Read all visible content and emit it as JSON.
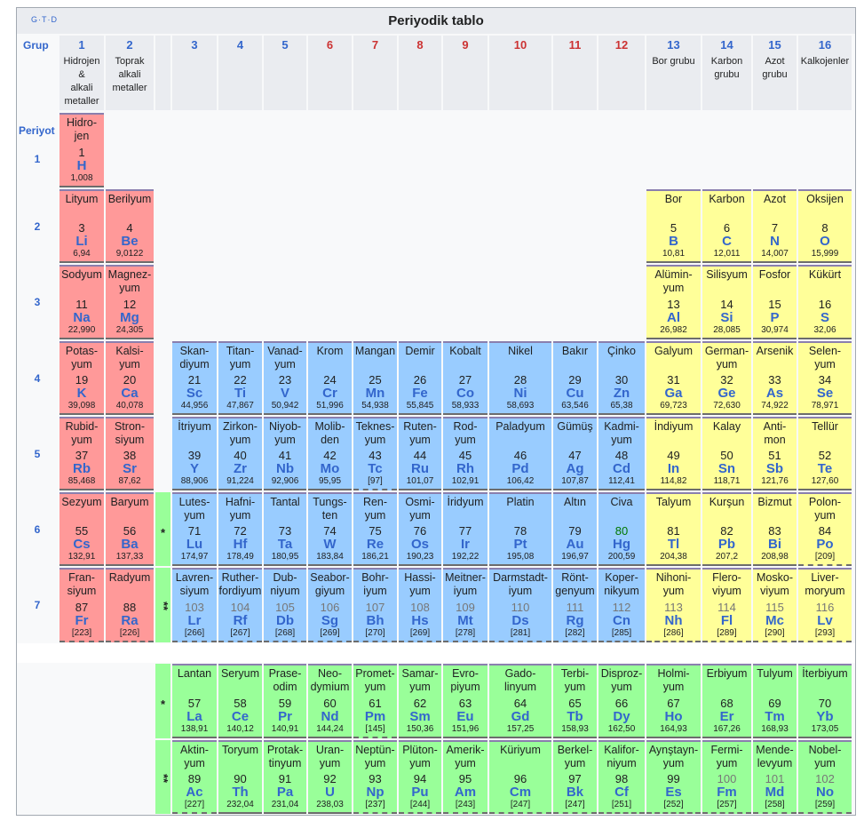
{
  "header": {
    "title": "Periyodik tablo",
    "nav": "G·T·D"
  },
  "labels": {
    "group": "Grup",
    "period": "Periyot"
  },
  "colors": {
    "red": "#ff9999",
    "blue": "#99ccff",
    "yellow": "#ffff99",
    "green": "#99ff99",
    "symbol": "#3366cc",
    "group_red": "#cc3333"
  },
  "groups": [
    {
      "col": 0,
      "num": "1",
      "name": "Hidrojen\n&\nalkali\nmetaller",
      "numcolor": "blue"
    },
    {
      "col": 1,
      "num": "2",
      "name": "Toprak\nalkali\nmetaller",
      "numcolor": "blue"
    },
    {
      "col": 3,
      "num": "3",
      "name": "",
      "numcolor": "blue"
    },
    {
      "col": 4,
      "num": "4",
      "name": "",
      "numcolor": "blue"
    },
    {
      "col": 5,
      "num": "5",
      "name": "",
      "numcolor": "blue"
    },
    {
      "col": 6,
      "num": "6",
      "name": "",
      "numcolor": "red"
    },
    {
      "col": 7,
      "num": "7",
      "name": "",
      "numcolor": "red"
    },
    {
      "col": 8,
      "num": "8",
      "name": "",
      "numcolor": "red"
    },
    {
      "col": 9,
      "num": "9",
      "name": "",
      "numcolor": "red"
    },
    {
      "col": 10,
      "num": "10",
      "name": "",
      "numcolor": "red"
    },
    {
      "col": 11,
      "num": "11",
      "name": "",
      "numcolor": "red"
    },
    {
      "col": 12,
      "num": "12",
      "name": "",
      "numcolor": "red"
    },
    {
      "col": 13,
      "num": "13",
      "name": "Bor grubu",
      "numcolor": "blue"
    },
    {
      "col": 14,
      "num": "14",
      "name": "Karbon\ngrubu",
      "numcolor": "blue"
    },
    {
      "col": 15,
      "num": "15",
      "name": "Azot\ngrubu",
      "numcolor": "blue"
    },
    {
      "col": 16,
      "num": "16",
      "name": "Kalkojenler",
      "numcolor": "blue"
    }
  ],
  "periods": [
    "1",
    "2",
    "3",
    "4",
    "5",
    "6",
    "7"
  ],
  "series_markers": [
    "*",
    "**",
    "*",
    "**"
  ],
  "elements": [
    {
      "col": 0,
      "row": 0,
      "name": "Hidro-\njen",
      "z": "1",
      "sym": "H",
      "mass": "1,008",
      "cat": "red"
    },
    {
      "col": 0,
      "row": 1,
      "name": "Lityum",
      "z": "3",
      "sym": "Li",
      "mass": "6,94",
      "cat": "red"
    },
    {
      "col": 1,
      "row": 1,
      "name": "Berilyum",
      "z": "4",
      "sym": "Be",
      "mass": "9,0122",
      "cat": "red"
    },
    {
      "col": 13,
      "row": 1,
      "name": "Bor",
      "z": "5",
      "sym": "B",
      "mass": "10,81",
      "cat": "yellow"
    },
    {
      "col": 14,
      "row": 1,
      "name": "Karbon",
      "z": "6",
      "sym": "C",
      "mass": "12,011",
      "cat": "yellow"
    },
    {
      "col": 15,
      "row": 1,
      "name": "Azot",
      "z": "7",
      "sym": "N",
      "mass": "14,007",
      "cat": "yellow"
    },
    {
      "col": 16,
      "row": 1,
      "name": "Oksijen",
      "z": "8",
      "sym": "O",
      "mass": "15,999",
      "cat": "yellow"
    },
    {
      "col": 0,
      "row": 2,
      "name": "Sodyum",
      "z": "11",
      "sym": "Na",
      "mass": "22,990",
      "cat": "red"
    },
    {
      "col": 1,
      "row": 2,
      "name": "Magnez-\nyum",
      "z": "12",
      "sym": "Mg",
      "mass": "24,305",
      "cat": "red"
    },
    {
      "col": 13,
      "row": 2,
      "name": "Alümin-\nyum",
      "z": "13",
      "sym": "Al",
      "mass": "26,982",
      "cat": "yellow"
    },
    {
      "col": 14,
      "row": 2,
      "name": "Silisyum",
      "z": "14",
      "sym": "Si",
      "mass": "28,085",
      "cat": "yellow"
    },
    {
      "col": 15,
      "row": 2,
      "name": "Fosfor",
      "z": "15",
      "sym": "P",
      "mass": "30,974",
      "cat": "yellow"
    },
    {
      "col": 16,
      "row": 2,
      "name": "Kükürt",
      "z": "16",
      "sym": "S",
      "mass": "32,06",
      "cat": "yellow"
    },
    {
      "col": 0,
      "row": 3,
      "name": "Potas-\nyum",
      "z": "19",
      "sym": "K",
      "mass": "39,098",
      "cat": "red"
    },
    {
      "col": 1,
      "row": 3,
      "name": "Kalsi-\nyum",
      "z": "20",
      "sym": "Ca",
      "mass": "40,078",
      "cat": "red"
    },
    {
      "col": 3,
      "row": 3,
      "name": "Skan-\ndiyum",
      "z": "21",
      "sym": "Sc",
      "mass": "44,956",
      "cat": "blue"
    },
    {
      "col": 4,
      "row": 3,
      "name": "Titan-\nyum",
      "z": "22",
      "sym": "Ti",
      "mass": "47,867",
      "cat": "blue"
    },
    {
      "col": 5,
      "row": 3,
      "name": "Vanad-\nyum",
      "z": "23",
      "sym": "V",
      "mass": "50,942",
      "cat": "blue"
    },
    {
      "col": 6,
      "row": 3,
      "name": "Krom",
      "z": "24",
      "sym": "Cr",
      "mass": "51,996",
      "cat": "blue"
    },
    {
      "col": 7,
      "row": 3,
      "name": "Mangan",
      "z": "25",
      "sym": "Mn",
      "mass": "54,938",
      "cat": "blue"
    },
    {
      "col": 8,
      "row": 3,
      "name": "Demir",
      "z": "26",
      "sym": "Fe",
      "mass": "55,845",
      "cat": "blue"
    },
    {
      "col": 9,
      "row": 3,
      "name": "Kobalt",
      "z": "27",
      "sym": "Co",
      "mass": "58,933",
      "cat": "blue"
    },
    {
      "col": 10,
      "row": 3,
      "name": "Nikel",
      "z": "28",
      "sym": "Ni",
      "mass": "58,693",
      "cat": "blue"
    },
    {
      "col": 11,
      "row": 3,
      "name": "Bakır",
      "z": "29",
      "sym": "Cu",
      "mass": "63,546",
      "cat": "blue"
    },
    {
      "col": 12,
      "row": 3,
      "name": "Çinko",
      "z": "30",
      "sym": "Zn",
      "mass": "65,38",
      "cat": "blue"
    },
    {
      "col": 13,
      "row": 3,
      "name": "Galyum",
      "z": "31",
      "sym": "Ga",
      "mass": "69,723",
      "cat": "yellow"
    },
    {
      "col": 14,
      "row": 3,
      "name": "German-\nyum",
      "z": "32",
      "sym": "Ge",
      "mass": "72,630",
      "cat": "yellow"
    },
    {
      "col": 15,
      "row": 3,
      "name": "Arsenik",
      "z": "33",
      "sym": "As",
      "mass": "74,922",
      "cat": "yellow"
    },
    {
      "col": 16,
      "row": 3,
      "name": "Selen-\nyum",
      "z": "34",
      "sym": "Se",
      "mass": "78,971",
      "cat": "yellow"
    },
    {
      "col": 0,
      "row": 4,
      "name": "Rubid-\nyum",
      "z": "37",
      "sym": "Rb",
      "mass": "85,468",
      "cat": "red"
    },
    {
      "col": 1,
      "row": 4,
      "name": "Stron-\nsiyum",
      "z": "38",
      "sym": "Sr",
      "mass": "87,62",
      "cat": "red"
    },
    {
      "col": 3,
      "row": 4,
      "name": "İtriyum",
      "z": "39",
      "sym": "Y",
      "mass": "88,906",
      "cat": "blue"
    },
    {
      "col": 4,
      "row": 4,
      "name": "Zirkon-\nyum",
      "z": "40",
      "sym": "Zr",
      "mass": "91,224",
      "cat": "blue"
    },
    {
      "col": 5,
      "row": 4,
      "name": "Niyob-\nyum",
      "z": "41",
      "sym": "Nb",
      "mass": "92,906",
      "cat": "blue"
    },
    {
      "col": 6,
      "row": 4,
      "name": "Molib-\nden",
      "z": "42",
      "sym": "Mo",
      "mass": "95,95",
      "cat": "blue"
    },
    {
      "col": 7,
      "row": 4,
      "name": "Teknes-\nyum",
      "z": "43",
      "sym": "Tc",
      "mass": "[97]",
      "cat": "blue",
      "dashed": true
    },
    {
      "col": 8,
      "row": 4,
      "name": "Ruten-\nyum",
      "z": "44",
      "sym": "Ru",
      "mass": "101,07",
      "cat": "blue"
    },
    {
      "col": 9,
      "row": 4,
      "name": "Rod-\nyum",
      "z": "45",
      "sym": "Rh",
      "mass": "102,91",
      "cat": "blue"
    },
    {
      "col": 10,
      "row": 4,
      "name": "Paladyum",
      "z": "46",
      "sym": "Pd",
      "mass": "106,42",
      "cat": "blue"
    },
    {
      "col": 11,
      "row": 4,
      "name": "Gümüş",
      "z": "47",
      "sym": "Ag",
      "mass": "107,87",
      "cat": "blue"
    },
    {
      "col": 12,
      "row": 4,
      "name": "Kadmi-\nyum",
      "z": "48",
      "sym": "Cd",
      "mass": "112,41",
      "cat": "blue"
    },
    {
      "col": 13,
      "row": 4,
      "name": "İndiyum",
      "z": "49",
      "sym": "In",
      "mass": "114,82",
      "cat": "yellow"
    },
    {
      "col": 14,
      "row": 4,
      "name": "Kalay",
      "z": "50",
      "sym": "Sn",
      "mass": "118,71",
      "cat": "yellow"
    },
    {
      "col": 15,
      "row": 4,
      "name": "Anti-\nmon",
      "z": "51",
      "sym": "Sb",
      "mass": "121,76",
      "cat": "yellow"
    },
    {
      "col": 16,
      "row": 4,
      "name": "Tellür",
      "z": "52",
      "sym": "Te",
      "mass": "127,60",
      "cat": "yellow"
    },
    {
      "col": 0,
      "row": 5,
      "name": "Sezyum",
      "z": "55",
      "sym": "Cs",
      "mass": "132,91",
      "cat": "red"
    },
    {
      "col": 1,
      "row": 5,
      "name": "Baryum",
      "z": "56",
      "sym": "Ba",
      "mass": "137,33",
      "cat": "red"
    },
    {
      "col": 3,
      "row": 5,
      "name": "Lutes-\nyum",
      "z": "71",
      "sym": "Lu",
      "mass": "174,97",
      "cat": "blue"
    },
    {
      "col": 4,
      "row": 5,
      "name": "Hafni-\nyum",
      "z": "72",
      "sym": "Hf",
      "mass": "178,49",
      "cat": "blue"
    },
    {
      "col": 5,
      "row": 5,
      "name": "Tantal",
      "z": "73",
      "sym": "Ta",
      "mass": "180,95",
      "cat": "blue"
    },
    {
      "col": 6,
      "row": 5,
      "name": "Tungs-\nten",
      "z": "74",
      "sym": "W",
      "mass": "183,84",
      "cat": "blue"
    },
    {
      "col": 7,
      "row": 5,
      "name": "Ren-\nyum",
      "z": "75",
      "sym": "Re",
      "mass": "186,21",
      "cat": "blue"
    },
    {
      "col": 8,
      "row": 5,
      "name": "Osmi-\nyum",
      "z": "76",
      "sym": "Os",
      "mass": "190,23",
      "cat": "blue"
    },
    {
      "col": 9,
      "row": 5,
      "name": "İridyum",
      "z": "77",
      "sym": "Ir",
      "mass": "192,22",
      "cat": "blue"
    },
    {
      "col": 10,
      "row": 5,
      "name": "Platin",
      "z": "78",
      "sym": "Pt",
      "mass": "195,08",
      "cat": "blue"
    },
    {
      "col": 11,
      "row": 5,
      "name": "Altın",
      "z": "79",
      "sym": "Au",
      "mass": "196,97",
      "cat": "blue"
    },
    {
      "col": 12,
      "row": 5,
      "name": "Civa",
      "z": "80",
      "sym": "Hg",
      "mass": "200,59",
      "cat": "blue",
      "zcolor": "#007700"
    },
    {
      "col": 13,
      "row": 5,
      "name": "Talyum",
      "z": "81",
      "sym": "Tl",
      "mass": "204,38",
      "cat": "yellow"
    },
    {
      "col": 14,
      "row": 5,
      "name": "Kurşun",
      "z": "82",
      "sym": "Pb",
      "mass": "207,2",
      "cat": "yellow"
    },
    {
      "col": 15,
      "row": 5,
      "name": "Bizmut",
      "z": "83",
      "sym": "Bi",
      "mass": "208,98",
      "cat": "yellow"
    },
    {
      "col": 16,
      "row": 5,
      "name": "Polon-\nyum",
      "z": "84",
      "sym": "Po",
      "mass": "[209]",
      "cat": "yellow",
      "dashed": true
    },
    {
      "col": 0,
      "row": 6,
      "name": "Fran-\nsiyum",
      "z": "87",
      "sym": "Fr",
      "mass": "[223]",
      "cat": "red",
      "dashed": true
    },
    {
      "col": 1,
      "row": 6,
      "name": "Radyum",
      "z": "88",
      "sym": "Ra",
      "mass": "[226]",
      "cat": "red",
      "dashed": true
    },
    {
      "col": 3,
      "row": 6,
      "name": "Lavren-\nsiyum",
      "z": "103",
      "sym": "Lr",
      "mass": "[266]",
      "cat": "blue",
      "dashed": true,
      "zcolor": "#777777"
    },
    {
      "col": 4,
      "row": 6,
      "name": "Ruther-\nfordiyum",
      "z": "104",
      "sym": "Rf",
      "mass": "[267]",
      "cat": "blue",
      "dashed": true,
      "zcolor": "#777777"
    },
    {
      "col": 5,
      "row": 6,
      "name": "Dub-\nniyum",
      "z": "105",
      "sym": "Db",
      "mass": "[268]",
      "cat": "blue",
      "dashed": true,
      "zcolor": "#777777"
    },
    {
      "col": 6,
      "row": 6,
      "name": "Seabor-\ngiyum",
      "z": "106",
      "sym": "Sg",
      "mass": "[269]",
      "cat": "blue",
      "dashed": true,
      "zcolor": "#777777"
    },
    {
      "col": 7,
      "row": 6,
      "name": "Bohr-\niyum",
      "z": "107",
      "sym": "Bh",
      "mass": "[270]",
      "cat": "blue",
      "dashed": true,
      "zcolor": "#777777"
    },
    {
      "col": 8,
      "row": 6,
      "name": "Hassi-\nyum",
      "z": "108",
      "sym": "Hs",
      "mass": "[269]",
      "cat": "blue",
      "dashed": true,
      "zcolor": "#777777"
    },
    {
      "col": 9,
      "row": 6,
      "name": "Meitner-\niyum",
      "z": "109",
      "sym": "Mt",
      "mass": "[278]",
      "cat": "blue",
      "dashed": true,
      "zcolor": "#777777"
    },
    {
      "col": 10,
      "row": 6,
      "name": "Darmstadt-\niyum",
      "z": "110",
      "sym": "Ds",
      "mass": "[281]",
      "cat": "blue",
      "dashed": true,
      "zcolor": "#777777"
    },
    {
      "col": 11,
      "row": 6,
      "name": "Rönt-\ngenyum",
      "z": "111",
      "sym": "Rg",
      "mass": "[282]",
      "cat": "blue",
      "dashed": true,
      "zcolor": "#777777"
    },
    {
      "col": 12,
      "row": 6,
      "name": "Koper-\nnikyum",
      "z": "112",
      "sym": "Cn",
      "mass": "[285]",
      "cat": "blue",
      "dashed": true,
      "zcolor": "#777777"
    },
    {
      "col": 13,
      "row": 6,
      "name": "Nihoni-\nyum",
      "z": "113",
      "sym": "Nh",
      "mass": "[286]",
      "cat": "yellow",
      "dashed": true,
      "zcolor": "#777777"
    },
    {
      "col": 14,
      "row": 6,
      "name": "Flero-\nviyum",
      "z": "114",
      "sym": "Fl",
      "mass": "[289]",
      "cat": "yellow",
      "dashed": true,
      "zcolor": "#777777"
    },
    {
      "col": 15,
      "row": 6,
      "name": "Mosko-\nviyum",
      "z": "115",
      "sym": "Mc",
      "mass": "[290]",
      "cat": "yellow",
      "dashed": true,
      "zcolor": "#777777"
    },
    {
      "col": 16,
      "row": 6,
      "name": "Liver-\nmoryum",
      "z": "116",
      "sym": "Lv",
      "mass": "[293]",
      "cat": "yellow",
      "dashed": true,
      "zcolor": "#777777"
    },
    {
      "col": 3,
      "row": 8,
      "name": "Lantan",
      "z": "57",
      "sym": "La",
      "mass": "138,91",
      "cat": "green"
    },
    {
      "col": 4,
      "row": 8,
      "name": "Seryum",
      "z": "58",
      "sym": "Ce",
      "mass": "140,12",
      "cat": "green"
    },
    {
      "col": 5,
      "row": 8,
      "name": "Prase-\nodim",
      "z": "59",
      "sym": "Pr",
      "mass": "140,91",
      "cat": "green"
    },
    {
      "col": 6,
      "row": 8,
      "name": "Neo-\ndymium",
      "z": "60",
      "sym": "Nd",
      "mass": "144,24",
      "cat": "green"
    },
    {
      "col": 7,
      "row": 8,
      "name": "Promet-\nyum",
      "z": "61",
      "sym": "Pm",
      "mass": "[145]",
      "cat": "green",
      "dashed": true
    },
    {
      "col": 8,
      "row": 8,
      "name": "Samar-\nyum",
      "z": "62",
      "sym": "Sm",
      "mass": "150,36",
      "cat": "green"
    },
    {
      "col": 9,
      "row": 8,
      "name": "Evro-\npiyum",
      "z": "63",
      "sym": "Eu",
      "mass": "151,96",
      "cat": "green"
    },
    {
      "col": 10,
      "row": 8,
      "name": "Gado-\nlinyum",
      "z": "64",
      "sym": "Gd",
      "mass": "157,25",
      "cat": "green"
    },
    {
      "col": 11,
      "row": 8,
      "name": "Terbi-\nyum",
      "z": "65",
      "sym": "Tb",
      "mass": "158,93",
      "cat": "green"
    },
    {
      "col": 12,
      "row": 8,
      "name": "Disproz-\nyum",
      "z": "66",
      "sym": "Dy",
      "mass": "162,50",
      "cat": "green"
    },
    {
      "col": 13,
      "row": 8,
      "name": "Holmi-\nyum",
      "z": "67",
      "sym": "Ho",
      "mass": "164,93",
      "cat": "green"
    },
    {
      "col": 14,
      "row": 8,
      "name": "Erbiyum",
      "z": "68",
      "sym": "Er",
      "mass": "167,26",
      "cat": "green"
    },
    {
      "col": 15,
      "row": 8,
      "name": "Tulyum",
      "z": "69",
      "sym": "Tm",
      "mass": "168,93",
      "cat": "green"
    },
    {
      "col": 16,
      "row": 8,
      "name": "İterbiyum",
      "z": "70",
      "sym": "Yb",
      "mass": "173,05",
      "cat": "green"
    },
    {
      "col": 3,
      "row": 9,
      "name": "Aktin-\nyum",
      "z": "89",
      "sym": "Ac",
      "mass": "[227]",
      "cat": "green",
      "dashed": true
    },
    {
      "col": 4,
      "row": 9,
      "name": "Toryum",
      "z": "90",
      "sym": "Th",
      "mass": "232,04",
      "cat": "green"
    },
    {
      "col": 5,
      "row": 9,
      "name": "Protak-\ntinyum",
      "z": "91",
      "sym": "Pa",
      "mass": "231,04",
      "cat": "green"
    },
    {
      "col": 6,
      "row": 9,
      "name": "Uran-\nyum",
      "z": "92",
      "sym": "U",
      "mass": "238,03",
      "cat": "green"
    },
    {
      "col": 7,
      "row": 9,
      "name": "Neptün-\nyum",
      "z": "93",
      "sym": "Np",
      "mass": "[237]",
      "cat": "green",
      "dashed": true
    },
    {
      "col": 8,
      "row": 9,
      "name": "Plüton-\nyum",
      "z": "94",
      "sym": "Pu",
      "mass": "[244]",
      "cat": "green",
      "dashed": true
    },
    {
      "col": 9,
      "row": 9,
      "name": "Amerik-\nyum",
      "z": "95",
      "sym": "Am",
      "mass": "[243]",
      "cat": "green",
      "dashed": true
    },
    {
      "col": 10,
      "row": 9,
      "name": "Küriyum",
      "z": "96",
      "sym": "Cm",
      "mass": "[247]",
      "cat": "green",
      "dashed": true
    },
    {
      "col": 11,
      "row": 9,
      "name": "Berkel-\nyum",
      "z": "97",
      "sym": "Bk",
      "mass": "[247]",
      "cat": "green",
      "dashed": true
    },
    {
      "col": 12,
      "row": 9,
      "name": "Kalifor-\nniyum",
      "z": "98",
      "sym": "Cf",
      "mass": "[251]",
      "cat": "green",
      "dashed": true
    },
    {
      "col": 13,
      "row": 9,
      "name": "Aynştayn-\nyum",
      "z": "99",
      "sym": "Es",
      "mass": "[252]",
      "cat": "green",
      "dashed": true
    },
    {
      "col": 14,
      "row": 9,
      "name": "Fermi-\nyum",
      "z": "100",
      "sym": "Fm",
      "mass": "[257]",
      "cat": "green",
      "dashed": true,
      "zcolor": "#777777"
    },
    {
      "col": 15,
      "row": 9,
      "name": "Mende-\nlevyum",
      "z": "101",
      "sym": "Md",
      "mass": "[258]",
      "cat": "green",
      "dashed": true,
      "zcolor": "#777777"
    },
    {
      "col": 16,
      "row": 9,
      "name": "Nobel-\nyum",
      "z": "102",
      "sym": "No",
      "mass": "[259]",
      "cat": "green",
      "dashed": true,
      "zcolor": "#777777"
    }
  ]
}
